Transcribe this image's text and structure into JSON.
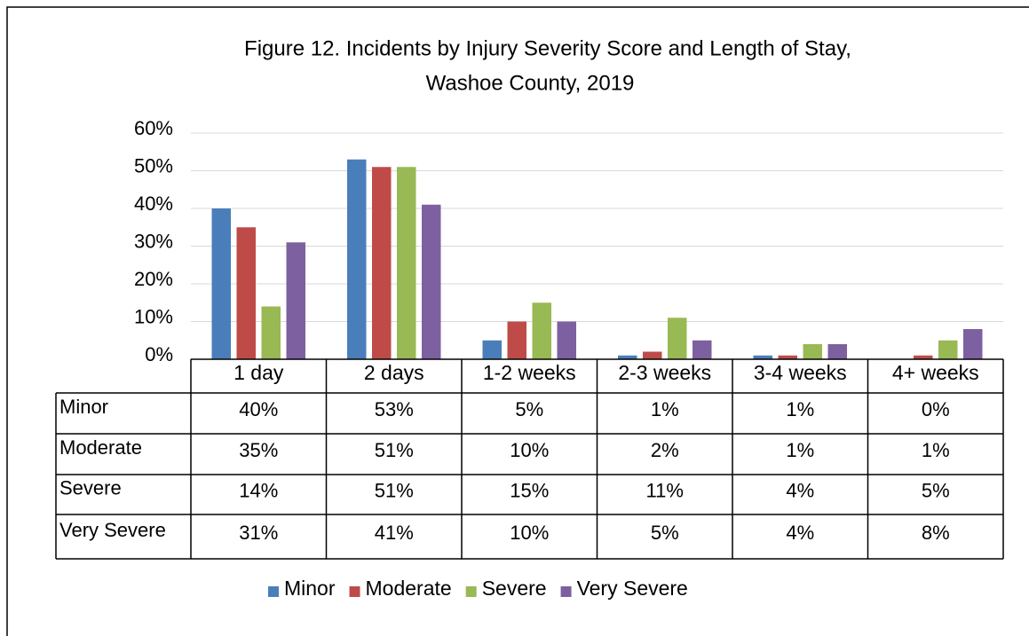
{
  "chart_data": {
    "type": "bar",
    "title": [
      "Figure 12. Incidents by Injury Severity Score and Length of Stay,",
      "Washoe County, 2019"
    ],
    "categories": [
      "1 day",
      "2 days",
      "1-2 weeks",
      "2-3 weeks",
      "3-4 weeks",
      "4+ weeks"
    ],
    "series": [
      {
        "name": "Minor",
        "color": "#4a7ebb",
        "values": [
          40,
          53,
          5,
          1,
          1,
          0
        ],
        "value_labels": [
          "40%",
          "53%",
          "5%",
          "1%",
          "1%",
          "0%"
        ]
      },
      {
        "name": "Moderate",
        "color": "#be4b48",
        "values": [
          35,
          51,
          10,
          2,
          1,
          1
        ],
        "value_labels": [
          "35%",
          "51%",
          "10%",
          "2%",
          "1%",
          "1%"
        ]
      },
      {
        "name": "Severe",
        "color": "#98b954",
        "values": [
          14,
          51,
          15,
          11,
          4,
          5
        ],
        "value_labels": [
          "14%",
          "51%",
          "15%",
          "11%",
          "4%",
          "5%"
        ]
      },
      {
        "name": "Very Severe",
        "color": "#7d60a0",
        "values": [
          31,
          41,
          10,
          5,
          4,
          8
        ],
        "value_labels": [
          "31%",
          "41%",
          "10%",
          "5%",
          "4%",
          "8%"
        ]
      }
    ],
    "ylim": [
      0,
      60
    ],
    "yticks": [
      {
        "value": 0,
        "label": "0%"
      },
      {
        "value": 10,
        "label": "10%"
      },
      {
        "value": 20,
        "label": "20%"
      },
      {
        "value": 30,
        "label": "30%"
      },
      {
        "value": 40,
        "label": "40%"
      },
      {
        "value": 50,
        "label": "50%"
      },
      {
        "value": 60,
        "label": "60%"
      }
    ],
    "grid": true,
    "legend": "bottom"
  }
}
